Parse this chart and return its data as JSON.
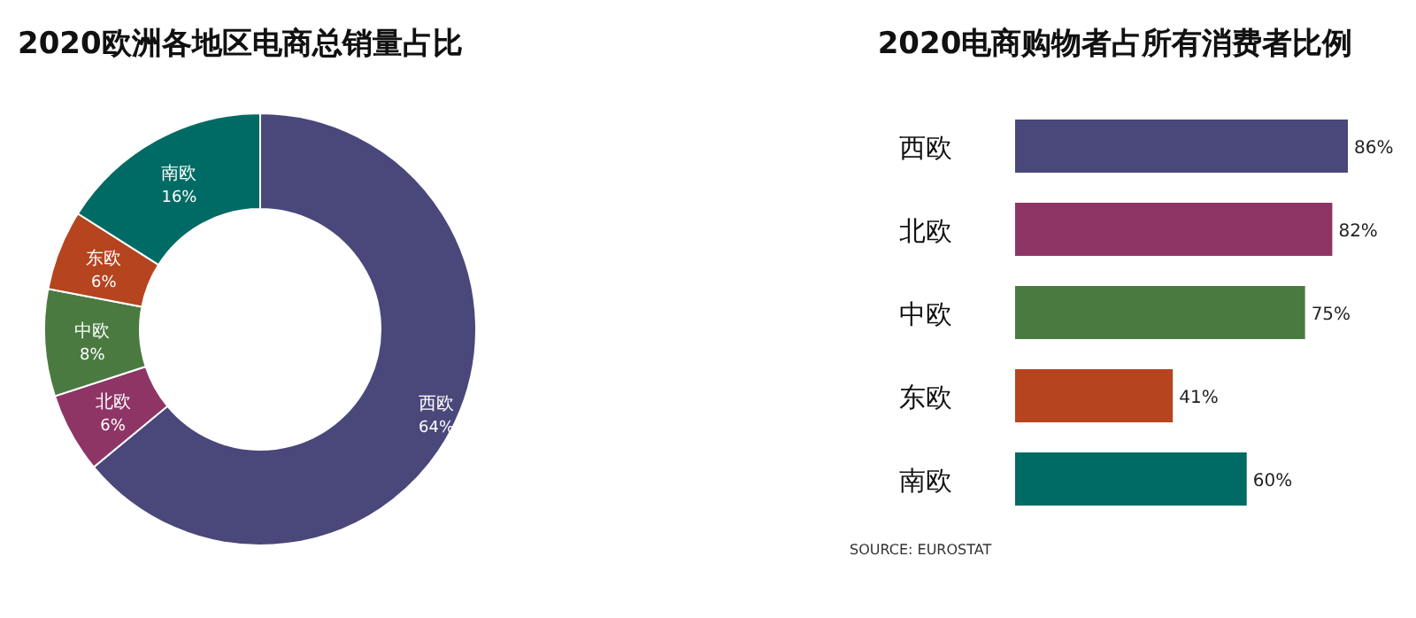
{
  "chart_data": [
    {
      "type": "donut",
      "title": "2020欧洲各地区电商总销量占比",
      "categories": [
        "西欧",
        "北欧",
        "中欧",
        "东欧",
        "南欧"
      ],
      "values": [
        64,
        6,
        8,
        6,
        16
      ],
      "value_labels": [
        "64%",
        "6%",
        "8%",
        "6%",
        "16%"
      ],
      "colors": [
        "#4a477a",
        "#8e3566",
        "#4a7a40",
        "#b5441f",
        "#006b64"
      ]
    },
    {
      "type": "bar",
      "orientation": "horizontal",
      "title": "2020电商购物者占所有消费者比例",
      "categories": [
        "西欧",
        "北欧",
        "中欧",
        "东欧",
        "南欧"
      ],
      "values": [
        86,
        82,
        75,
        41,
        60
      ],
      "value_labels": [
        "86%",
        "82%",
        "75%",
        "41%",
        "60%"
      ],
      "colors": [
        "#4a477a",
        "#8e3566",
        "#4a7a40",
        "#b5441f",
        "#006b64"
      ],
      "annotations": [
        "SOURCE: EUROSTAT"
      ]
    }
  ]
}
